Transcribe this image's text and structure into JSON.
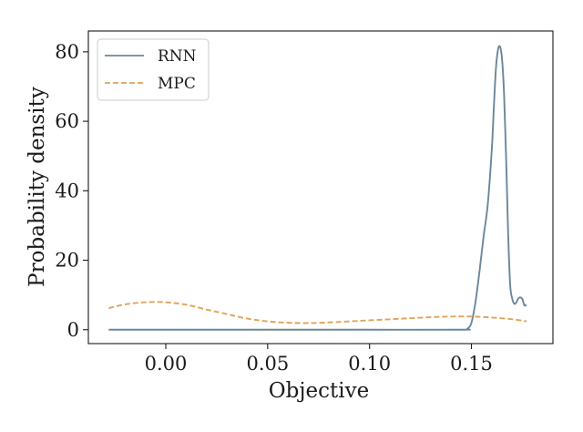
{
  "chart_data": {
    "type": "line",
    "xlabel": "Objective",
    "ylabel": "Probability density",
    "xlim": [
      -0.038,
      0.19
    ],
    "ylim": [
      -4,
      86
    ],
    "xticks": [
      0.0,
      0.05,
      0.1,
      0.15
    ],
    "xtick_labels": [
      "0.00",
      "0.05",
      "0.10",
      "0.15"
    ],
    "yticks": [
      0,
      20,
      40,
      60,
      80
    ],
    "ytick_labels": [
      "0",
      "20",
      "40",
      "60",
      "80"
    ],
    "grid": false,
    "legend_position": "top-left",
    "series": [
      {
        "name": "RNN",
        "color": "#6b8799",
        "style": "solid",
        "x": [
          -0.028,
          0.0,
          0.05,
          0.1,
          0.145,
          0.148,
          0.15,
          0.152,
          0.154,
          0.156,
          0.158,
          0.16,
          0.161,
          0.162,
          0.163,
          0.164,
          0.165,
          0.166,
          0.167,
          0.168,
          0.169,
          0.17,
          0.171,
          0.172,
          0.173,
          0.174,
          0.175,
          0.176,
          0.177
        ],
        "y": [
          0.0,
          0.0,
          0.0,
          0.0,
          0.0,
          0.3,
          2.0,
          8.0,
          17.0,
          27.0,
          36.0,
          52.0,
          64.0,
          75.0,
          80.5,
          81.5,
          78.0,
          68.0,
          50.0,
          28.0,
          13.0,
          9.0,
          7.5,
          7.8,
          9.0,
          9.3,
          8.8,
          7.0,
          7.2
        ]
      },
      {
        "name": "MPC",
        "color": "#e0a45a",
        "style": "dashed",
        "x": [
          -0.028,
          -0.02,
          -0.01,
          0.0,
          0.01,
          0.02,
          0.03,
          0.04,
          0.05,
          0.06,
          0.07,
          0.08,
          0.09,
          0.1,
          0.11,
          0.12,
          0.13,
          0.14,
          0.15,
          0.16,
          0.17,
          0.177
        ],
        "y": [
          6.2,
          7.3,
          7.9,
          7.9,
          7.2,
          5.8,
          4.5,
          3.2,
          2.4,
          2.0,
          1.9,
          2.1,
          2.4,
          2.7,
          3.0,
          3.3,
          3.6,
          3.8,
          3.8,
          3.5,
          3.0,
          2.4
        ]
      }
    ]
  }
}
